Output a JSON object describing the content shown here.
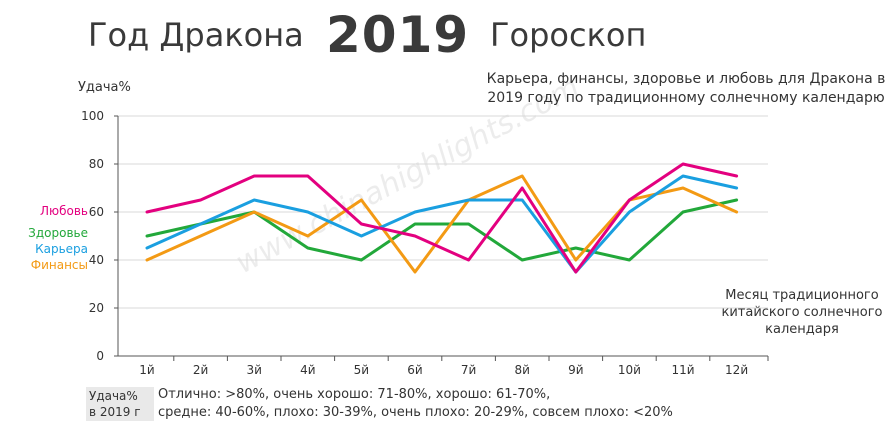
{
  "header": {
    "title_left": "Год Дракона",
    "title_year": "2019",
    "title_right": "Гороскоп",
    "subtitle_line1": "Карьера, финансы, здоровье и любовь для Дракона в",
    "subtitle_line2": "2019 году по традиционному солнечному календарю"
  },
  "watermark": "www.chinahighlights.com",
  "footer": {
    "key_line1": "Удача%",
    "key_line2": "в 2019 г",
    "line1": "Отлично: >80%, очень хорошо: 71-80%, хорошо: 61-70%,",
    "line2": "средне: 40-60%, плохо: 30-39%, очень плохо: 20-29%, совсем плохо: <20%"
  },
  "chart_data": {
    "type": "line",
    "ylabel": "Удача%",
    "xlabel_lines": [
      "Месяц традиционного",
      "китайского солнечного",
      "календаря"
    ],
    "categories": [
      "1й",
      "2й",
      "3й",
      "4й",
      "5й",
      "6й",
      "7й",
      "8й",
      "9й",
      "10й",
      "11й",
      "12й"
    ],
    "ylim": [
      0,
      100
    ],
    "yticks": [
      0,
      20,
      40,
      60,
      80,
      100
    ],
    "grid": "horizontal",
    "series": [
      {
        "name": "Любовь",
        "color": "#e3007f",
        "values": [
          60,
          65,
          75,
          75,
          55,
          50,
          40,
          70,
          35,
          65,
          80,
          75
        ]
      },
      {
        "name": "Здоровье",
        "color": "#22a83a",
        "values": [
          50,
          55,
          60,
          45,
          40,
          55,
          55,
          40,
          45,
          40,
          60,
          65
        ]
      },
      {
        "name": "Карьера",
        "color": "#1a9fe0",
        "values": [
          45,
          55,
          65,
          60,
          50,
          60,
          65,
          65,
          35,
          60,
          75,
          70
        ]
      },
      {
        "name": "Финансы",
        "color": "#f39a14",
        "values": [
          40,
          50,
          60,
          50,
          65,
          35,
          65,
          75,
          40,
          65,
          70,
          60
        ]
      }
    ]
  }
}
